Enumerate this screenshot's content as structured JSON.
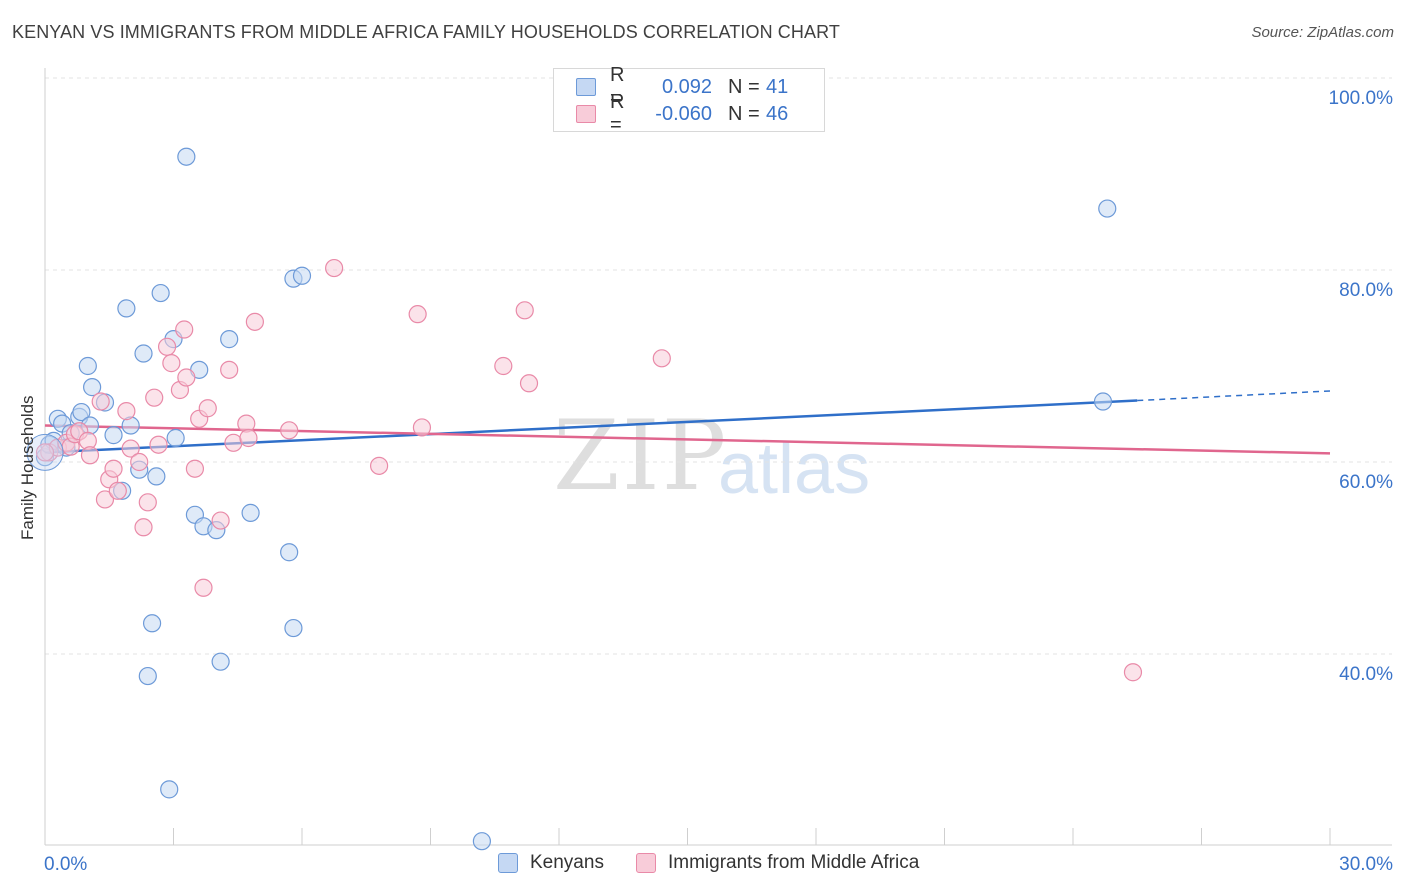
{
  "title": "KENYAN VS IMMIGRANTS FROM MIDDLE AFRICA FAMILY HOUSEHOLDS CORRELATION CHART",
  "source": "Source: ZipAtlas.com",
  "watermark": {
    "zip": "ZIP",
    "atlas": "atlas"
  },
  "colors": {
    "blue_fill": "#c5d8f3",
    "blue_stroke": "#6d9ad8",
    "blue_line": "#2f6fc9",
    "pink_fill": "#f8ccd9",
    "pink_stroke": "#e98aa8",
    "pink_line": "#e0668e",
    "tick_label": "#3b74c9",
    "grid": "#e3e3e3"
  },
  "legend": {
    "rows": [
      {
        "r_label": "R =",
        "r_value": "0.092",
        "n_label": "N =",
        "n_value": "41"
      },
      {
        "r_label": "R =",
        "r_value": "-0.060",
        "n_label": "N =",
        "n_value": "46"
      }
    ]
  },
  "bottom_legend": {
    "kenyans": "Kenyans",
    "immigrants": "Immigrants from Middle Africa"
  },
  "chart_data": {
    "type": "scatter",
    "title": "KENYAN VS IMMIGRANTS FROM MIDDLE AFRICA FAMILY HOUSEHOLDS CORRELATION CHART",
    "xlabel": "",
    "ylabel": "Family Households",
    "xlim": [
      0,
      30
    ],
    "ylim": [
      20,
      100
    ],
    "x_tick_labels": {
      "left": "0.0%",
      "right": "30.0%"
    },
    "y_ticks": [
      {
        "value": 100,
        "label": "100.0%"
      },
      {
        "value": 80,
        "label": "80.0%"
      },
      {
        "value": 60,
        "label": "60.0%"
      },
      {
        "value": 40,
        "label": "40.0%"
      }
    ],
    "series": [
      {
        "name": "Kenyans",
        "color": "blue",
        "trend": {
          "x0": 0,
          "y0": 61.0,
          "x1": 25.5,
          "y1": 66.4,
          "dash_to_x": 30,
          "dash_to_y": 67.4
        },
        "points": [
          [
            0.0,
            60.5
          ],
          [
            0.1,
            61.8
          ],
          [
            0.2,
            62.2
          ],
          [
            0.3,
            64.5
          ],
          [
            0.4,
            64.0
          ],
          [
            0.5,
            61.5
          ],
          [
            0.6,
            63.0
          ],
          [
            0.8,
            64.7
          ],
          [
            0.85,
            65.2
          ],
          [
            1.0,
            70.0
          ],
          [
            1.05,
            63.8
          ],
          [
            1.1,
            67.8
          ],
          [
            1.4,
            66.2
          ],
          [
            1.6,
            62.8
          ],
          [
            1.8,
            57.0
          ],
          [
            1.9,
            76.0
          ],
          [
            2.0,
            63.8
          ],
          [
            2.2,
            59.2
          ],
          [
            2.3,
            71.3
          ],
          [
            2.4,
            37.7
          ],
          [
            2.5,
            43.2
          ],
          [
            2.6,
            58.5
          ],
          [
            2.7,
            77.6
          ],
          [
            2.9,
            25.9
          ],
          [
            3.0,
            72.8
          ],
          [
            3.05,
            62.5
          ],
          [
            3.3,
            91.8
          ],
          [
            3.5,
            54.5
          ],
          [
            3.6,
            69.6
          ],
          [
            3.7,
            53.3
          ],
          [
            4.0,
            52.9
          ],
          [
            4.1,
            39.2
          ],
          [
            4.3,
            72.8
          ],
          [
            4.8,
            54.7
          ],
          [
            5.7,
            50.6
          ],
          [
            5.8,
            42.7
          ],
          [
            5.8,
            79.1
          ],
          [
            6.0,
            79.4
          ],
          [
            10.2,
            20.5
          ],
          [
            24.8,
            86.4
          ],
          [
            24.7,
            66.3
          ]
        ]
      },
      {
        "name": "Immigrants from Middle Africa",
        "color": "pink",
        "trend": {
          "x0": 0,
          "y0": 63.8,
          "x1": 30,
          "y1": 60.9
        },
        "points": [
          [
            0.1,
            61.0
          ],
          [
            0.3,
            61.5
          ],
          [
            0.5,
            62.0
          ],
          [
            0.6,
            61.6
          ],
          [
            0.7,
            62.9
          ],
          [
            0.8,
            63.2
          ],
          [
            1.0,
            62.2
          ],
          [
            1.05,
            60.7
          ],
          [
            1.3,
            66.3
          ],
          [
            1.4,
            56.1
          ],
          [
            1.5,
            58.2
          ],
          [
            1.6,
            59.3
          ],
          [
            1.7,
            57.0
          ],
          [
            1.9,
            65.3
          ],
          [
            2.0,
            61.4
          ],
          [
            2.2,
            60.0
          ],
          [
            2.3,
            53.2
          ],
          [
            2.4,
            55.8
          ],
          [
            2.55,
            66.7
          ],
          [
            2.65,
            61.8
          ],
          [
            2.85,
            72.0
          ],
          [
            2.95,
            70.3
          ],
          [
            3.15,
            67.5
          ],
          [
            3.25,
            73.8
          ],
          [
            3.3,
            68.8
          ],
          [
            3.5,
            59.3
          ],
          [
            3.6,
            64.5
          ],
          [
            3.7,
            46.9
          ],
          [
            3.8,
            65.6
          ],
          [
            4.1,
            53.9
          ],
          [
            4.3,
            69.6
          ],
          [
            4.4,
            62.0
          ],
          [
            4.7,
            64.0
          ],
          [
            4.75,
            62.5
          ],
          [
            4.9,
            74.6
          ],
          [
            5.7,
            63.3
          ],
          [
            6.75,
            80.2
          ],
          [
            7.8,
            59.6
          ],
          [
            8.7,
            75.4
          ],
          [
            8.8,
            63.6
          ],
          [
            10.7,
            70.0
          ],
          [
            11.2,
            75.8
          ],
          [
            11.3,
            68.2
          ],
          [
            14.4,
            70.8
          ],
          [
            25.4,
            38.1
          ],
          [
            0.0,
            61.0
          ]
        ]
      }
    ]
  }
}
